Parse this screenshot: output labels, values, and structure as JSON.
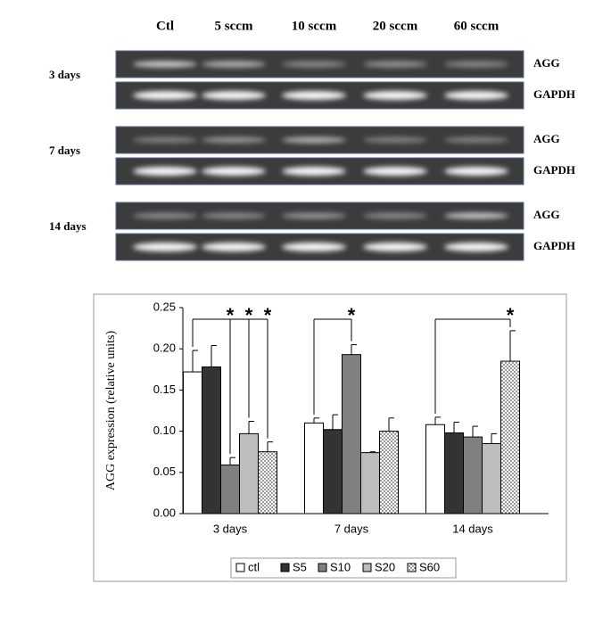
{
  "gel": {
    "columns": [
      "Ctl",
      "5 sccm",
      "10 sccm",
      "20 sccm",
      "60 sccm"
    ],
    "rows": [
      {
        "label": "3 days",
        "bands": [
          "AGG",
          "GAPDH"
        ]
      },
      {
        "label": "7 days",
        "bands": [
          "AGG",
          "GAPDH"
        ]
      },
      {
        "label": "14 days",
        "bands": [
          "AGG",
          "GAPDH"
        ]
      }
    ]
  },
  "chart_data": {
    "type": "bar",
    "ylabel": "AGG expression (relative units)",
    "categories": [
      "3 days",
      "7 days",
      "14 days"
    ],
    "series": [
      {
        "name": "ctl",
        "color": "#ffffff",
        "values": [
          0.172,
          0.11,
          0.108
        ],
        "errors": [
          0.026,
          0.006,
          0.009
        ]
      },
      {
        "name": "S5",
        "color": "#333333",
        "values": [
          0.178,
          0.102,
          0.098
        ],
        "errors": [
          0.026,
          0.018,
          0.013
        ]
      },
      {
        "name": "S10",
        "color": "#808080",
        "values": [
          0.059,
          0.193,
          0.093
        ],
        "errors": [
          0.009,
          0.012,
          0.013
        ]
      },
      {
        "name": "S20",
        "color": "#bdbdbd",
        "values": [
          0.097,
          0.074,
          0.085
        ],
        "errors": [
          0.015,
          0.001,
          0.012
        ]
      },
      {
        "name": "S60",
        "color": "#ffffff",
        "pattern": "dots",
        "values": [
          0.075,
          0.1,
          0.185
        ],
        "errors": [
          0.012,
          0.016,
          0.037
        ]
      }
    ],
    "ylim": [
      0,
      0.25
    ],
    "yticks": [
      {
        "value": 0,
        "label": "0.00"
      },
      0.05,
      {
        "value": 0.1,
        "label": "0.10"
      },
      0.15,
      {
        "value": 0.2,
        "label": "0.20"
      },
      0.25
    ],
    "legend": "bottom",
    "annotations": [
      {
        "text": "*",
        "category": 0,
        "from": 0,
        "to": 2
      },
      {
        "text": "*",
        "category": 0,
        "from": 0,
        "to": 3
      },
      {
        "text": "*",
        "category": 0,
        "from": 0,
        "to": 4
      },
      {
        "text": "*",
        "category": 1,
        "from": 0,
        "to": 2
      },
      {
        "text": "*",
        "category": 2,
        "from": 0,
        "to": 4
      }
    ]
  }
}
